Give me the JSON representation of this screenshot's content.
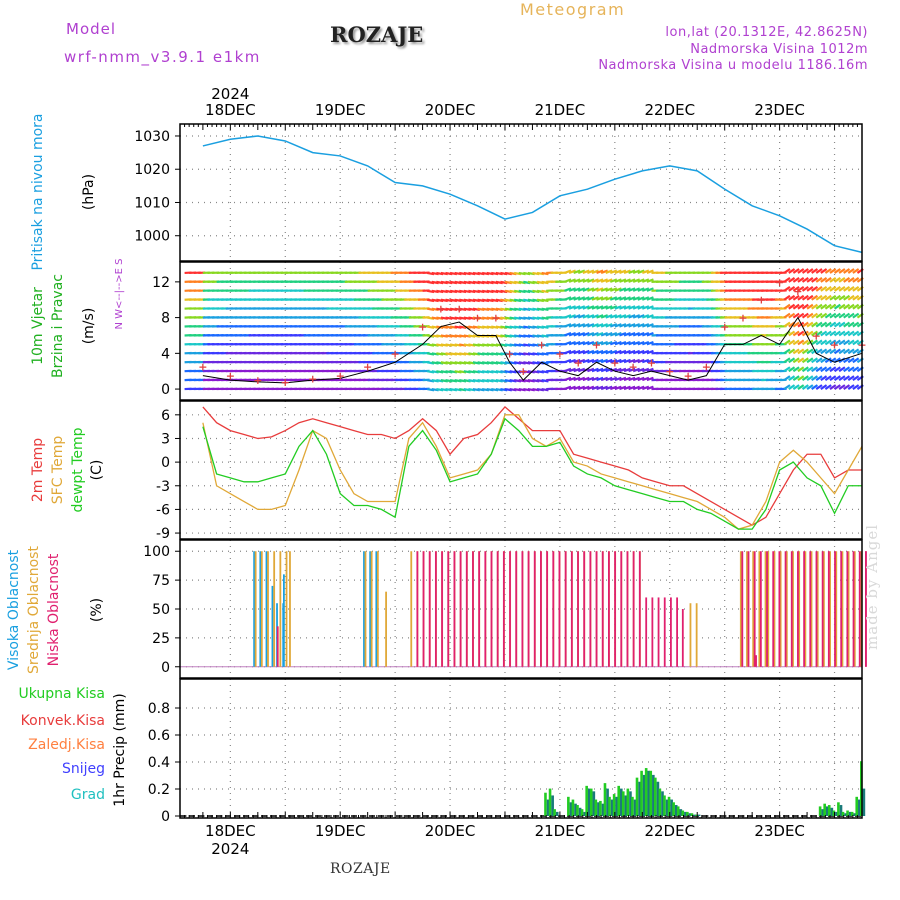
{
  "header": {
    "model_label": "Model",
    "model_name": "wrf-nmm_v3.9.1 e1km",
    "station": "ROZAJE",
    "meteogram": "Meteogram",
    "lonlat": "lon,lat (20.1312E, 42.8625N)",
    "altitude": "Nadmorska Visina 1012m",
    "model_altitude": "Nadmorska Visina u modelu 1186.16m"
  },
  "footer": {
    "station": "ROZAJE",
    "credit": "made by Angel"
  },
  "colors": {
    "pressure": "#1a9fe0",
    "temp2m": "#e83c3c",
    "sfc_temp": "#e0a838",
    "dewpoint": "#22cc22",
    "cloud_high": "#1aa0e0",
    "cloud_mid": "#e0a838",
    "cloud_low": "#e0206e",
    "precip_total": "#22cc22",
    "precip_conv": "#e83c3c",
    "precip_frozen": "#ff8040",
    "precip_snow": "#4040ff",
    "precip_hail": "#20c0c0",
    "wind_gust": "#e04040",
    "wind_speed": "#000000"
  },
  "chart_data": [
    {
      "type": "line",
      "name": "pressure",
      "ylabel": "Pritisak na nivou mora",
      "unit": "(hPa)",
      "ylim": [
        993,
        1033
      ],
      "yticks": [
        1000,
        1010,
        1020,
        1030
      ],
      "x": [
        0,
        6,
        12,
        18,
        24,
        30,
        36,
        42,
        48,
        54,
        60,
        66,
        72,
        78,
        84,
        87,
        90,
        96,
        102,
        108,
        114,
        120,
        126,
        132,
        138,
        144
      ],
      "series": [
        {
          "name": "Pritisak",
          "values": [
            1027,
            1029,
            1030,
            1028.5,
            1025,
            1024,
            1021,
            1016,
            1015,
            1012.5,
            1009,
            1005,
            1007,
            1012,
            1014,
            1015.5,
            1017,
            1019.5,
            1021,
            1019.5,
            1014,
            1009,
            1006,
            1002,
            997,
            995
          ]
        }
      ]
    },
    {
      "type": "line",
      "name": "wind",
      "ylabel": "10m Vjetar Brzina i Pravac",
      "unit": "(m/s)",
      "compass": "N  W<--|-->E  S",
      "ylim": [
        -1,
        14
      ],
      "yticks": [
        0,
        4,
        8,
        12
      ],
      "x": [
        0,
        6,
        12,
        18,
        24,
        30,
        36,
        42,
        48,
        52,
        56,
        60,
        64,
        67,
        70,
        74,
        78,
        82,
        86,
        90,
        94,
        98,
        102,
        106,
        110,
        114,
        118,
        122,
        126,
        130,
        134,
        138,
        144
      ],
      "series": [
        {
          "name": "Brzina",
          "values": [
            1.5,
            1,
            0.8,
            0.7,
            1,
            1.2,
            2,
            3,
            5,
            7,
            7.5,
            6,
            6,
            3,
            1,
            3,
            2,
            1.5,
            3,
            2,
            1.5,
            2,
            1.5,
            1,
            1.5,
            5,
            5,
            6,
            5,
            8,
            4,
            3,
            4
          ]
        },
        {
          "name": "Udari",
          "values": [
            2.5,
            1.5,
            1,
            0.8,
            1.2,
            1.5,
            2.5,
            4,
            7,
            9,
            9,
            8,
            8,
            4,
            2,
            5,
            4,
            3,
            5,
            3,
            2.5,
            3,
            2,
            1.5,
            2.5,
            7,
            8,
            10,
            12,
            11,
            6,
            5,
            5
          ]
        }
      ]
    },
    {
      "type": "line",
      "name": "temperature",
      "ylabels": [
        "2m Temp",
        "SFC Temp",
        "dewpt Temp"
      ],
      "unit": "(C)",
      "ylim": [
        -9.5,
        7.5
      ],
      "yticks": [
        -9,
        -6,
        -3,
        0,
        3,
        6
      ],
      "x": [
        0,
        3,
        6,
        9,
        12,
        15,
        18,
        21,
        24,
        27,
        30,
        33,
        36,
        39,
        42,
        45,
        48,
        51,
        54,
        57,
        60,
        63,
        66,
        69,
        72,
        75,
        78,
        81,
        84,
        87,
        90,
        93,
        96,
        99,
        102,
        105,
        108,
        111,
        114,
        117,
        120,
        123,
        126,
        129,
        132,
        135,
        138,
        141,
        144
      ],
      "series": [
        {
          "name": "2m Temp",
          "values": [
            7,
            5,
            4,
            3.5,
            3,
            3.2,
            4,
            5,
            5.5,
            5,
            4.5,
            4,
            3.5,
            3.5,
            3,
            4,
            5.5,
            4,
            1,
            3,
            3.5,
            5,
            7,
            5.5,
            4,
            4,
            4,
            1,
            0.5,
            0,
            -0.5,
            -1,
            -2,
            -2.5,
            -3,
            -3,
            -4,
            -5,
            -6,
            -7,
            -8,
            -7,
            -4,
            -1,
            1,
            1,
            -2,
            -1,
            -1
          ]
        },
        {
          "name": "SFC Temp",
          "values": [
            5,
            -3,
            -4,
            -5,
            -6,
            -6,
            -5.5,
            -1,
            4,
            3,
            -1,
            -4,
            -5,
            -5,
            -5,
            3,
            5,
            2,
            -2,
            -1.5,
            -1,
            1,
            6,
            6,
            3,
            2,
            3,
            0,
            -0.5,
            -1.5,
            -2,
            -2.5,
            -3,
            -3.5,
            -4,
            -4.5,
            -5,
            -6,
            -7,
            -8.5,
            -8,
            -5,
            0,
            1.5,
            0,
            -2,
            -4,
            -1,
            2
          ]
        },
        {
          "name": "dewpt Temp",
          "values": [
            4.5,
            -1.5,
            -2,
            -2.5,
            -2.5,
            -2,
            -1.5,
            2,
            4,
            1,
            -4,
            -5.5,
            -5.5,
            -6,
            -7,
            2,
            4,
            1.5,
            -2.5,
            -2,
            -1.5,
            1,
            5.5,
            4,
            2,
            2,
            2.5,
            -0.5,
            -1.5,
            -2,
            -3,
            -3.5,
            -4,
            -4.5,
            -5,
            -5,
            -6,
            -6.5,
            -7.5,
            -8.5,
            -8.5,
            -6,
            -1,
            0,
            -2,
            -3,
            -6.5,
            -3,
            -3
          ]
        }
      ]
    },
    {
      "type": "bar",
      "name": "clouds",
      "ylabels": [
        "Visoka Oblacnost",
        "Srednja Oblacnost",
        "Niska Oblacnost"
      ],
      "unit": "(%)",
      "ylim": [
        -8,
        108
      ],
      "yticks": [
        0,
        25,
        50,
        75,
        100
      ],
      "series": [
        {
          "name": "Visoka Oblacnost",
          "segments": [
            [
              11,
              15,
              100
            ],
            [
              15,
              16,
              70
            ],
            [
              16,
              17.5,
              55
            ],
            [
              17.5,
              18.5,
              80
            ],
            [
              35,
              38,
              100
            ]
          ]
        },
        {
          "name": "Srednja Oblacnost",
          "segments": [
            [
              11,
              18.5,
              100
            ],
            [
              18.5,
              19.5,
              100
            ],
            [
              35,
              39,
              100
            ],
            [
              39.5,
              40,
              65
            ],
            [
              45,
              95,
              100
            ],
            [
              106,
              108,
              55
            ],
            [
              117,
              123,
              100
            ],
            [
              123,
              144,
              100
            ]
          ]
        },
        {
          "name": "Niska Oblacnost",
          "segments": [
            [
              15.5,
              16,
              35
            ],
            [
              46,
              95,
              100
            ],
            [
              96,
              104,
              60
            ],
            [
              104,
              105,
              50
            ],
            [
              117,
              144,
              100
            ],
            [
              120,
              121,
              10
            ],
            [
              144,
              144,
              100
            ]
          ]
        }
      ]
    },
    {
      "type": "bar",
      "name": "precip",
      "ylabels": [
        "Ukupna Kisa",
        "Konvek.Kisa",
        "Zaledj.Kisa",
        "Snijeg",
        "Grad"
      ],
      "ylabel": "1hr Precip (mm)",
      "ylim": [
        0,
        1
      ],
      "yticks": [
        0,
        0.2,
        0.4,
        0.6,
        0.8
      ],
      "x": [
        75,
        76,
        77,
        80,
        81,
        82,
        83,
        84,
        85,
        86,
        87,
        88,
        89,
        90,
        91,
        92,
        93,
        94,
        95,
        96,
        97,
        98,
        99,
        100,
        101,
        102,
        103,
        104,
        105,
        106,
        107,
        108,
        135,
        136,
        137,
        138,
        139,
        140,
        141,
        142,
        143,
        144
      ],
      "series": [
        {
          "name": "Ukupna Kisa",
          "values": [
            0.17,
            0.2,
            0.05,
            0.14,
            0.12,
            0.08,
            0.05,
            0.22,
            0.2,
            0.12,
            0.11,
            0.24,
            0.14,
            0.16,
            0.22,
            0.18,
            0.2,
            0.14,
            0.28,
            0.33,
            0.35,
            0.33,
            0.28,
            0.2,
            0.15,
            0.14,
            0.1,
            0.07,
            0.04,
            0.03,
            0.02,
            0.01,
            0.07,
            0.09,
            0.08,
            0.04,
            0.1,
            0.03,
            0.04,
            0.03,
            0.14,
            0.4
          ]
        },
        {
          "name": "Snijeg",
          "values": [
            0.12,
            0.15,
            0.03,
            0.1,
            0.09,
            0.06,
            0.03,
            0.2,
            0.18,
            0.1,
            0.09,
            0.2,
            0.12,
            0.14,
            0.2,
            0.15,
            0.18,
            0.12,
            0.25,
            0.3,
            0.33,
            0.3,
            0.25,
            0.18,
            0.12,
            0.12,
            0.08,
            0.05,
            0.03,
            0.02,
            0.01,
            0.01,
            0.05,
            0.07,
            0.06,
            0.03,
            0.08,
            0.02,
            0.03,
            0.02,
            0.12,
            0.2
          ]
        }
      ]
    }
  ],
  "x_axis": {
    "year": "2024",
    "labels": [
      "18DEC",
      "19DEC",
      "20DEC",
      "21DEC",
      "22DEC",
      "23DEC"
    ],
    "label_hours": [
      6,
      30,
      54,
      78,
      102,
      126
    ]
  }
}
